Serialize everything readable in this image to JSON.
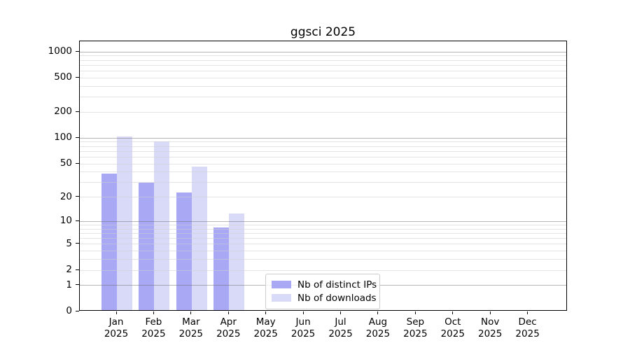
{
  "chart_data": {
    "type": "bar",
    "title": "ggsci 2025",
    "year": "2025",
    "months": [
      "Jan",
      "Feb",
      "Mar",
      "Apr",
      "May",
      "Jun",
      "Jul",
      "Aug",
      "Sep",
      "Oct",
      "Nov",
      "Dec"
    ],
    "categories": [
      "Jan 2025",
      "Feb 2025",
      "Mar 2025",
      "Apr 2025",
      "May 2025",
      "Jun 2025",
      "Jul 2025",
      "Aug 2025",
      "Sep 2025",
      "Oct 2025",
      "Nov 2025",
      "Dec 2025"
    ],
    "series": [
      {
        "name": "Nb of distinct IPs",
        "color": "#a8a8f4",
        "values": [
          37,
          29,
          22,
          8,
          0,
          0,
          0,
          0,
          0,
          0,
          0,
          0
        ]
      },
      {
        "name": "Nb of downloads",
        "color": "#d9d9f8",
        "values": [
          100,
          88,
          45,
          12,
          0,
          0,
          0,
          0,
          0,
          0,
          0,
          0
        ]
      }
    ],
    "yticks": [
      0,
      1,
      2,
      5,
      10,
      20,
      50,
      100,
      200,
      500,
      1000
    ],
    "ylim": [
      0,
      1000
    ],
    "yscale": "log1p",
    "grid": true,
    "grid_major_values": [
      1,
      10,
      100,
      1000
    ],
    "grid_minor_values": [
      2,
      3,
      4,
      5,
      6,
      7,
      8,
      9,
      20,
      30,
      40,
      50,
      60,
      70,
      80,
      90,
      200,
      300,
      400,
      500,
      600,
      700,
      800,
      900
    ],
    "legend_position": "lower center",
    "colors": {
      "grid_major": "#bbbbbb",
      "grid_minor": "#e7e7e7",
      "axis": "#000000",
      "background": "#ffffff"
    }
  }
}
